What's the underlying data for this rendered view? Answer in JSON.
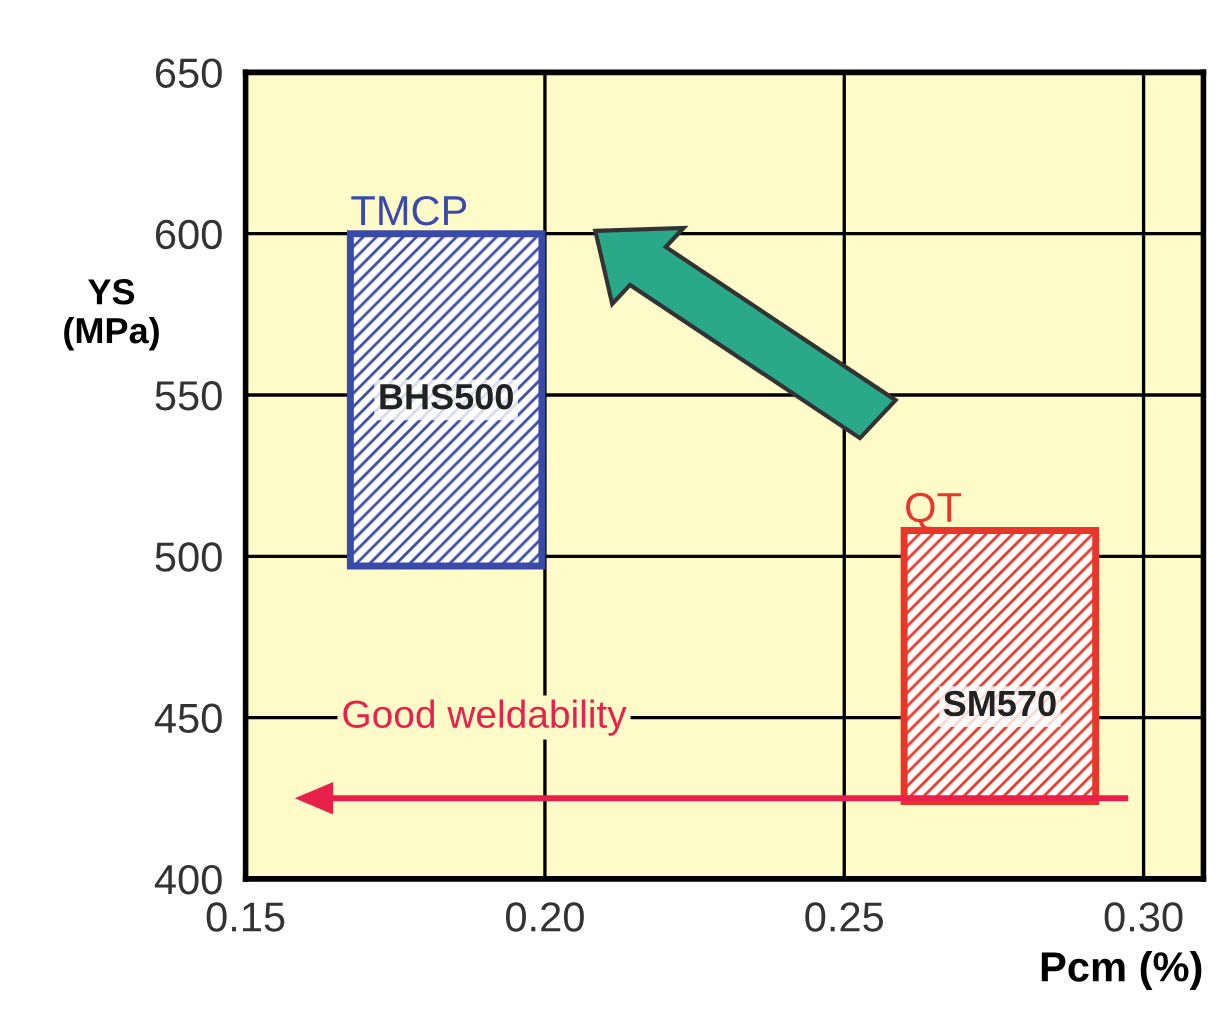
{
  "chart_data": {
    "type": "bar",
    "xlabel": "Pcm (%)",
    "ylabel": "YS\n(MPa)",
    "series": [
      {
        "name": "TMCP",
        "color": "#3a4aa8",
        "x": [
          0.1835
        ],
        "base": [
          497
        ],
        "values": [
          103
        ]
      },
      {
        "name": "QT",
        "color": "#e8362a",
        "x": [
          0.276
        ],
        "base": [
          424
        ],
        "values": [
          84
        ]
      }
    ],
    "annotations": [
      "BHS500",
      "SM570",
      "Good weldability"
    ],
    "xlim": [
      0.15,
      0.31
    ],
    "ylim": [
      400,
      650
    ],
    "xticks": [
      0.15,
      {
        "value": 0.2,
        "label": "0.20"
      },
      0.25,
      {
        "value": 0.3,
        "label": "0.30"
      }
    ],
    "yticks": [
      400,
      450,
      500,
      550,
      600,
      650
    ],
    "grid": true
  }
}
